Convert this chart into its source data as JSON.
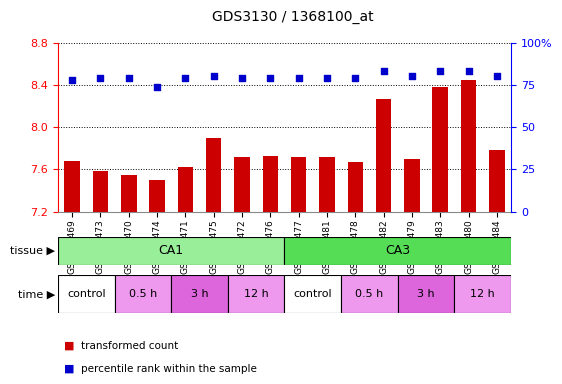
{
  "title": "GDS3130 / 1368100_at",
  "samples": [
    "GSM154469",
    "GSM154473",
    "GSM154470",
    "GSM154474",
    "GSM154471",
    "GSM154475",
    "GSM154472",
    "GSM154476",
    "GSM154477",
    "GSM154481",
    "GSM154478",
    "GSM154482",
    "GSM154479",
    "GSM154483",
    "GSM154480",
    "GSM154484"
  ],
  "bar_values": [
    7.68,
    7.58,
    7.55,
    7.5,
    7.62,
    7.9,
    7.72,
    7.73,
    7.72,
    7.72,
    7.67,
    8.27,
    7.7,
    8.38,
    8.45,
    7.78
  ],
  "percentile_values": [
    78,
    79,
    79,
    74,
    79,
    80,
    79,
    79,
    79,
    79,
    79,
    83,
    80,
    83,
    83,
    80
  ],
  "ylim_left": [
    7.2,
    8.8
  ],
  "ylim_right": [
    0,
    100
  ],
  "yticks_left": [
    7.2,
    7.6,
    8.0,
    8.4,
    8.8
  ],
  "yticks_right": [
    0,
    25,
    50,
    75,
    100
  ],
  "bar_color": "#cc0000",
  "dot_color": "#0000cc",
  "background_color": "#ffffff",
  "tissue_groups": [
    {
      "name": "CA1",
      "start": 0,
      "end": 8,
      "color": "#99ee99"
    },
    {
      "name": "CA3",
      "start": 8,
      "end": 16,
      "color": "#55dd55"
    }
  ],
  "time_groups": [
    {
      "name": "control",
      "start": 0,
      "end": 2,
      "color": "#ffffff"
    },
    {
      "name": "0.5 h",
      "start": 2,
      "end": 4,
      "color": "#ee99ee"
    },
    {
      "name": "3 h",
      "start": 4,
      "end": 6,
      "color": "#dd66dd"
    },
    {
      "name": "12 h",
      "start": 6,
      "end": 8,
      "color": "#ee99ee"
    },
    {
      "name": "control",
      "start": 8,
      "end": 10,
      "color": "#ffffff"
    },
    {
      "name": "0.5 h",
      "start": 10,
      "end": 12,
      "color": "#ee99ee"
    },
    {
      "name": "3 h",
      "start": 12,
      "end": 14,
      "color": "#dd66dd"
    },
    {
      "name": "12 h",
      "start": 14,
      "end": 16,
      "color": "#ee99ee"
    }
  ],
  "legend": [
    {
      "label": "transformed count",
      "color": "#cc0000"
    },
    {
      "label": "percentile rank within the sample",
      "color": "#0000cc"
    }
  ],
  "title_fontsize": 10,
  "axis_fontsize": 8,
  "tick_fontsize": 7,
  "sample_fontsize": 6.5
}
